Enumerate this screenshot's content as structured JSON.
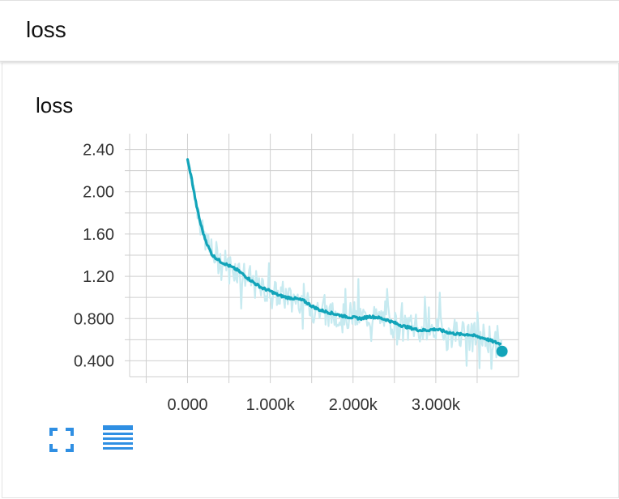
{
  "header": {
    "title": "loss"
  },
  "card": {
    "title": "loss"
  },
  "chart_data": {
    "type": "line",
    "title": "loss",
    "xlabel": "",
    "ylabel": "",
    "xlim": [
      -700,
      4000
    ],
    "ylim": [
      0.25,
      2.55
    ],
    "xticks": [
      0,
      1000,
      2000,
      3000
    ],
    "xtick_labels": [
      "0.000",
      "1.000k",
      "2.000k",
      "3.000k"
    ],
    "yticks": [
      0.4,
      0.8,
      1.2,
      1.6,
      2.0,
      2.4
    ],
    "ytick_labels": [
      "0.400",
      "0.800",
      "1.20",
      "1.60",
      "2.00",
      "2.40"
    ],
    "grid": true,
    "series": [
      {
        "smoothed": true,
        "x": [
          0,
          50,
          100,
          150,
          200,
          250,
          300,
          400,
          500,
          600,
          700,
          800,
          900,
          1000,
          1100,
          1200,
          1300,
          1400,
          1500,
          1600,
          1700,
          1800,
          1900,
          2000,
          2100,
          2200,
          2300,
          2400,
          2500,
          2600,
          2700,
          2800,
          2900,
          3000,
          3100,
          3200,
          3300,
          3400,
          3500,
          3600,
          3700,
          3780
        ],
        "values": [
          2.3,
          2.12,
          1.9,
          1.72,
          1.58,
          1.48,
          1.4,
          1.34,
          1.3,
          1.26,
          1.2,
          1.14,
          1.09,
          1.06,
          1.02,
          1.0,
          0.99,
          0.97,
          0.92,
          0.88,
          0.86,
          0.84,
          0.82,
          0.81,
          0.8,
          0.82,
          0.81,
          0.79,
          0.76,
          0.73,
          0.71,
          0.69,
          0.69,
          0.7,
          0.68,
          0.66,
          0.65,
          0.65,
          0.63,
          0.61,
          0.58,
          0.56
        ]
      }
    ],
    "last_point": {
      "x": 3800,
      "y": 0.49
    },
    "colors": {
      "line": "#12a4b9",
      "raw": "#c7eaf0",
      "grid": "#cfcfcf",
      "icon": "#2f8fe3"
    }
  },
  "toolbar": {
    "fullscreen_icon": "fullscreen-icon",
    "data_table_icon": "list-icon"
  }
}
